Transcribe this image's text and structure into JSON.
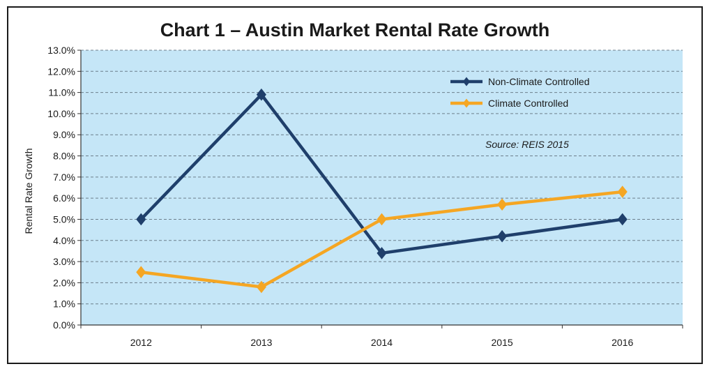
{
  "chart_data": {
    "type": "line",
    "title": "Chart 1 – Austin Market Rental Rate Growth",
    "ylabel": "Rental Rate Growth",
    "xlabel": "",
    "categories": [
      "2012",
      "2013",
      "2014",
      "2015",
      "2016"
    ],
    "ylim": [
      0,
      13
    ],
    "ytick_step": 1,
    "ytick_labels": [
      "0.0%",
      "1.0%",
      "2.0%",
      "3.0%",
      "4.0%",
      "5.0%",
      "6.0%",
      "7.0%",
      "8.0%",
      "9.0%",
      "10.0%",
      "11.0%",
      "12.0%",
      "13.0%"
    ],
    "grid": true,
    "legend_position": "top-right",
    "annotation": "Source: REIS 2015",
    "series": [
      {
        "name": "Non-Climate Controlled",
        "values": [
          5.0,
          10.9,
          3.4,
          4.2,
          5.0
        ],
        "color": "#1f3f6b"
      },
      {
        "name": "Climate Controlled",
        "values": [
          2.5,
          1.8,
          5.0,
          5.7,
          6.3
        ],
        "color": "#f5a623"
      }
    ],
    "plot_background": "#c5e6f7"
  }
}
